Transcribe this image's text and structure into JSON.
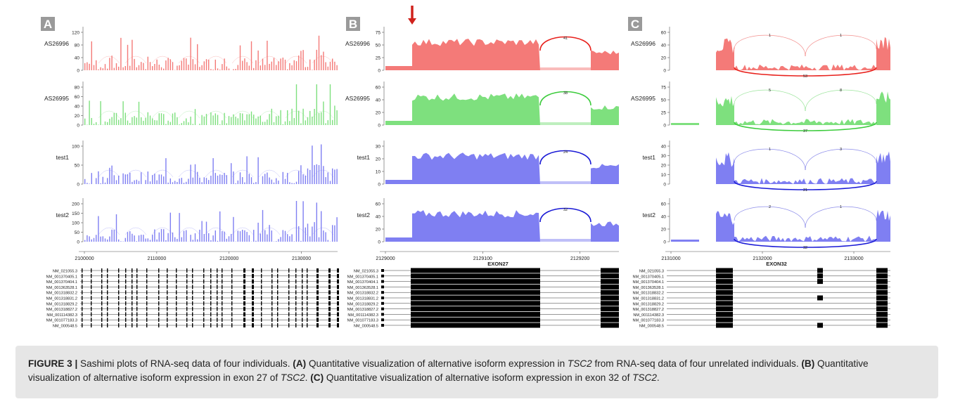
{
  "figure": {
    "panels": [
      {
        "letter": "A",
        "samples": [
          "AS26996",
          "AS26995",
          "test1",
          "test2"
        ],
        "y_ticks": [
          [
            "0",
            "40",
            "80",
            "120"
          ],
          [
            "0",
            "20",
            "40",
            "60",
            "80"
          ],
          [
            "0",
            "50",
            "100"
          ],
          [
            "0",
            "50",
            "100",
            "150",
            "200"
          ]
        ],
        "x_ticks": [
          "2100000",
          "2110000",
          "2120000",
          "2130000"
        ],
        "exon_label": ""
      },
      {
        "letter": "B",
        "samples": [
          "AS26996",
          "AS26995",
          "test1",
          "test2"
        ],
        "y_ticks": [
          [
            "0",
            "25",
            "50",
            "75"
          ],
          [
            "0",
            "20",
            "40",
            "60"
          ],
          [
            "0",
            "10",
            "20",
            "30"
          ],
          [
            "0",
            "20",
            "40",
            "60"
          ]
        ],
        "x_ticks": [
          "2129000",
          "2129100",
          "2129200"
        ],
        "exon_label": "EXON27"
      },
      {
        "letter": "C",
        "samples": [
          "AS26996",
          "AS26995",
          "test1",
          "test2"
        ],
        "y_ticks": [
          [
            "0",
            "20",
            "40",
            "60"
          ],
          [
            "0",
            "25",
            "50",
            "75"
          ],
          [
            "0",
            "10",
            "20",
            "30",
            "40"
          ],
          [
            "0",
            "20",
            "40",
            "60"
          ]
        ],
        "x_ticks": [
          "2131000",
          "2132000",
          "2133000"
        ],
        "exon_label": "EXON32"
      }
    ],
    "transcripts": [
      "NM_021055.3",
      "NM_001370405.1",
      "NM_001370404.1",
      "NM_001363528.1",
      "NM_001318832.2",
      "NM_001318831.2",
      "NM_001318829.2",
      "NM_001318827.2",
      "NM_001114382.3",
      "NM_001077183.3",
      "NM_000548.5"
    ],
    "colors": {
      "AS26996": "#f47a78",
      "AS26995": "#7ee07e",
      "test1": "#7f7ff2",
      "test2": "#7f7ff2",
      "arc_red": "#e8201b",
      "arc_green": "#3ccb3c",
      "arc_blue": "#1a1ad6",
      "arrow": "#d0221c",
      "letter_bg": "#9a9a9a"
    },
    "junction_labels_B": [
      "41",
      "38",
      "24",
      "32"
    ],
    "junction_labels_C": [
      [
        "1",
        "1",
        "53"
      ],
      [
        "5",
        "8",
        "37"
      ],
      [
        "1",
        "3",
        "21"
      ],
      [
        "2",
        "1",
        "32"
      ]
    ]
  },
  "caption": {
    "label": "FIGURE 3 |",
    "intro": " Sashimi plots of RNA-seq data of four individuals. ",
    "a_tag": "(A)",
    "a_text1": " Quantitative visualization of alternative isoform expression in ",
    "a_gene": "TSC2",
    "a_text2": " from RNA-seq data of four unrelated individuals. ",
    "b_tag": "(B)",
    "b_text1": " Quantitative visualization of alternative isoform expression in exon 27 of ",
    "b_gene": "TSC2",
    "b_end": ". ",
    "c_tag": "(C)",
    "c_text1": " Quantitative visualization of alternative isoform expression in exon 32 of ",
    "c_gene": "TSC2",
    "c_end": "."
  }
}
